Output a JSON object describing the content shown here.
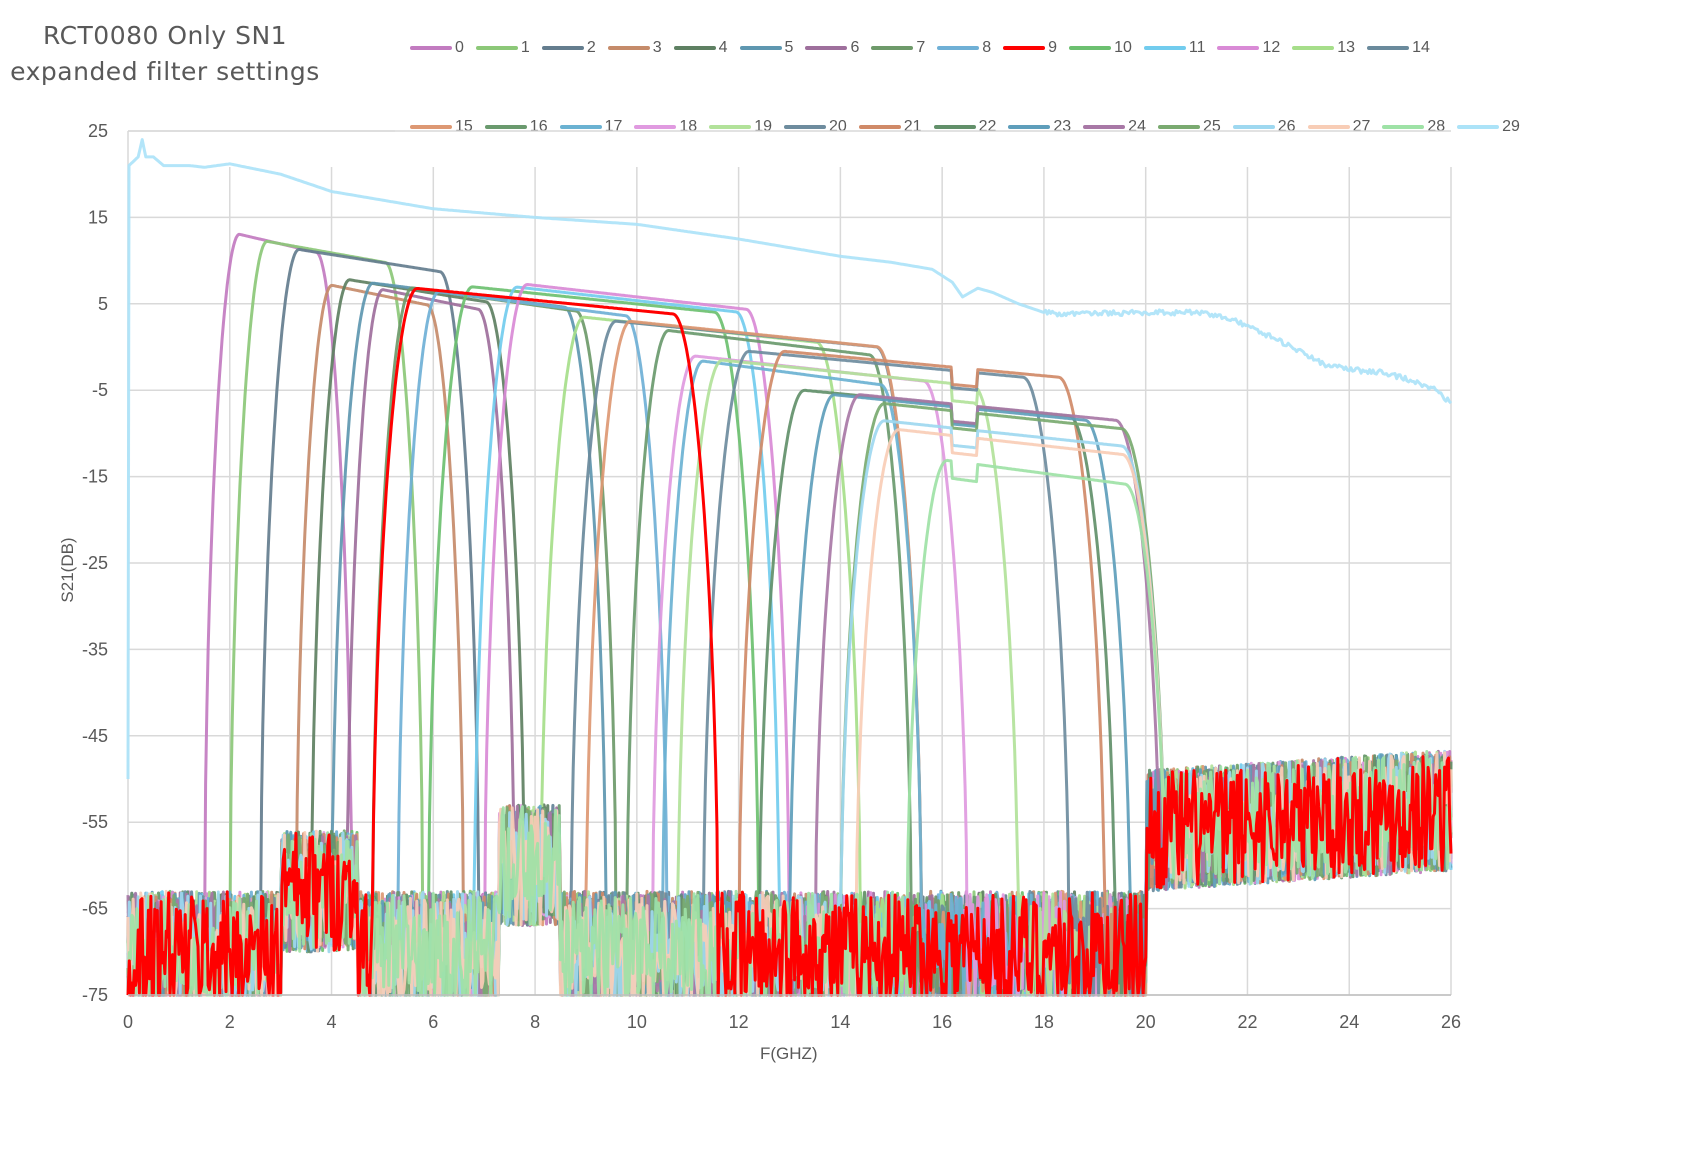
{
  "chart_data": {
    "type": "line",
    "title": "RCT0080 Only SN1 expanded filter settings",
    "title_lines": [
      "RCT0080 Only SN1",
      "expanded filter settings"
    ],
    "xlabel": "F(GHZ)",
    "ylabel": "S21(DB)",
    "xlim": [
      0,
      26
    ],
    "ylim": [
      -75,
      25
    ],
    "x_ticks": [
      0,
      2,
      4,
      6,
      8,
      10,
      12,
      14,
      16,
      18,
      20,
      22,
      24,
      26
    ],
    "y_ticks": [
      25,
      15,
      5,
      -5,
      -15,
      -25,
      -35,
      -45,
      -55,
      -65,
      -75
    ],
    "grid": true,
    "legend_position": "top",
    "noise_floor_db": [
      -75,
      -58
    ],
    "series": [
      {
        "name": "0",
        "color": "#C27BC0",
        "f_low": 1.5,
        "f_high": 4.4,
        "peak_db": 12,
        "note": "passband ~1.7-4.3 GHz, peak ~12 dB at 2.7 GHz"
      },
      {
        "name": "1",
        "color": "#8CC878",
        "f_low": 2.0,
        "f_high": 5.8,
        "peak_db": 11,
        "note": "peak ~11 dB at 3.0 GHz"
      },
      {
        "name": "2",
        "color": "#647D8E",
        "f_low": 2.6,
        "f_high": 6.9,
        "peak_db": 10,
        "note": "peak ~10 dB at 3.3 GHz"
      },
      {
        "name": "3",
        "color": "#C58B6A",
        "f_low": 3.3,
        "f_high": 6.6,
        "peak_db": 6,
        "note": "peak ~6 dB"
      },
      {
        "name": "4",
        "color": "#5E8062",
        "f_low": 3.6,
        "f_high": 7.8,
        "peak_db": 6.5,
        "note": "peak ~6.5 dB"
      },
      {
        "name": "5",
        "color": "#5E97B0",
        "f_low": 4.0,
        "f_high": 9.4,
        "peak_db": 6,
        "note": "peak ~6 dB"
      },
      {
        "name": "6",
        "color": "#9E6F9C",
        "f_low": 4.3,
        "f_high": 7.6,
        "peak_db": 5.5,
        "note": "peak ~5.5 dB"
      },
      {
        "name": "7",
        "color": "#6E9A6A",
        "f_low": 4.8,
        "f_high": 9.6,
        "peak_db": 5.5,
        "note": "peak ~5.5 dB"
      },
      {
        "name": "8",
        "color": "#6FB0D6",
        "f_low": 5.3,
        "f_high": 10.6,
        "peak_db": 5,
        "note": "peak ~5 dB"
      },
      {
        "name": "9",
        "color": "#FF0000",
        "f_low": 4.8,
        "f_high": 11.6,
        "peak_db": 5.3,
        "note": "highlighted, peak ~5.3 dB at 7.2 GHz"
      },
      {
        "name": "10",
        "color": "#6CC070",
        "f_low": 5.9,
        "f_high": 12.4,
        "peak_db": 5.5,
        "note": "peak ~5.5 dB"
      },
      {
        "name": "11",
        "color": "#72CCEE",
        "f_low": 6.8,
        "f_high": 12.8,
        "peak_db": 5.5,
        "note": "peak ~5.5 dB"
      },
      {
        "name": "12",
        "color": "#D98AD6",
        "f_low": 7.0,
        "f_high": 13.0,
        "peak_db": 5.8,
        "note": "peak ~5.8 dB at 9 GHz"
      },
      {
        "name": "13",
        "color": "#A6DE8A",
        "f_low": 8.1,
        "f_high": 14.4,
        "peak_db": 2,
        "note": "peak ~2 dB"
      },
      {
        "name": "14",
        "color": "#6A8A9C",
        "f_low": 8.7,
        "f_high": 15.6,
        "peak_db": 1.5,
        "note": "peak ~1.5 dB"
      },
      {
        "name": "15",
        "color": "#DD9873",
        "f_low": 9.0,
        "f_high": 15.6,
        "peak_db": 1.5,
        "note": "peak ~1.5 dB"
      },
      {
        "name": "16",
        "color": "#6A9A6E",
        "f_low": 9.8,
        "f_high": 15.4,
        "peak_db": 0.5,
        "note": "peak ~0.5 dB"
      },
      {
        "name": "17",
        "color": "#6BB2D2",
        "f_low": 10.5,
        "f_high": 15.6,
        "peak_db": -3,
        "note": "peak ~-3 dB"
      },
      {
        "name": "18",
        "color": "#E09AE0",
        "f_low": 10.3,
        "f_high": 16.5,
        "peak_db": -2.5,
        "note": "peak ~-2.5 dB"
      },
      {
        "name": "19",
        "color": "#B2E29A",
        "f_low": 10.8,
        "f_high": 17.5,
        "peak_db": -3,
        "note": "peak ~-3 dB"
      },
      {
        "name": "20",
        "color": "#6E8C9E",
        "f_low": 11.3,
        "f_high": 18.5,
        "peak_db": -2,
        "note": "peak ~-2 dB"
      },
      {
        "name": "21",
        "color": "#D08A68",
        "f_low": 12.0,
        "f_high": 19.2,
        "peak_db": -2,
        "note": "peak ~-2 dB"
      },
      {
        "name": "22",
        "color": "#62906A",
        "f_low": 12.4,
        "f_high": 19.4,
        "peak_db": -6.5,
        "note": "peak ~-6.5 dB"
      },
      {
        "name": "23",
        "color": "#5E9EBB",
        "f_low": 13.0,
        "f_high": 19.7,
        "peak_db": -7,
        "note": "peak ~-7 dB"
      },
      {
        "name": "24",
        "color": "#A878A6",
        "f_low": 13.5,
        "f_high": 20.3,
        "peak_db": -7,
        "note": "peak ~-7 dB"
      },
      {
        "name": "25",
        "color": "#7AAA70",
        "f_low": 14.0,
        "f_high": 20.4,
        "peak_db": -8,
        "note": "peak ~-8 dB"
      },
      {
        "name": "26",
        "color": "#9ED8F0",
        "f_low": 14.0,
        "f_high": 20.4,
        "peak_db": -10,
        "note": "peak ~-10 dB"
      },
      {
        "name": "27",
        "color": "#F8CDB6",
        "f_low": 14.3,
        "f_high": 20.4,
        "peak_db": -11,
        "note": "peak ~-11 dB"
      },
      {
        "name": "28",
        "color": "#9EE2A6",
        "f_low": 15.3,
        "f_high": 20.4,
        "peak_db": -14.5,
        "note": "peak ~-14.5 dB"
      },
      {
        "name": "29",
        "color": "#ACE3F8",
        "type": "through",
        "points": [
          [
            0,
            -50
          ],
          [
            0.02,
            21
          ],
          [
            0.2,
            22
          ],
          [
            0.28,
            24
          ],
          [
            0.35,
            22
          ],
          [
            0.5,
            22
          ],
          [
            0.7,
            21
          ],
          [
            1.2,
            21
          ],
          [
            1.5,
            20.8
          ],
          [
            2,
            21.2
          ],
          [
            3,
            20
          ],
          [
            4,
            18
          ],
          [
            5,
            17
          ],
          [
            6,
            16
          ],
          [
            8,
            15
          ],
          [
            10,
            14.2
          ],
          [
            12,
            12.5
          ],
          [
            14,
            10.5
          ],
          [
            15,
            9.8
          ],
          [
            15.8,
            9
          ],
          [
            16.2,
            7.5
          ],
          [
            16.4,
            5.8
          ],
          [
            16.7,
            6.8
          ],
          [
            17,
            6.3
          ],
          [
            17.5,
            5
          ],
          [
            18,
            4
          ],
          [
            18.5,
            3.8
          ],
          [
            20,
            4
          ],
          [
            21,
            4
          ],
          [
            21.5,
            3.5
          ],
          [
            22,
            2.5
          ],
          [
            22.7,
            0.5
          ],
          [
            23.5,
            -2
          ],
          [
            24,
            -2.6
          ],
          [
            24.7,
            -3
          ],
          [
            25.3,
            -4
          ],
          [
            25.7,
            -5
          ],
          [
            26,
            -6.5
          ]
        ],
        "note": "through/reference trace, ~22 dB down to ~-6 dB"
      }
    ]
  },
  "legend": {
    "row1": [
      "0",
      "1",
      "2",
      "3",
      "4",
      "5",
      "6",
      "7",
      "8",
      "9",
      "10",
      "11",
      "12",
      "13",
      "14"
    ],
    "row2": [
      "15",
      "16",
      "17",
      "18",
      "19",
      "20",
      "21",
      "22",
      "23",
      "24",
      "25",
      "26",
      "27",
      "28",
      "29"
    ]
  }
}
